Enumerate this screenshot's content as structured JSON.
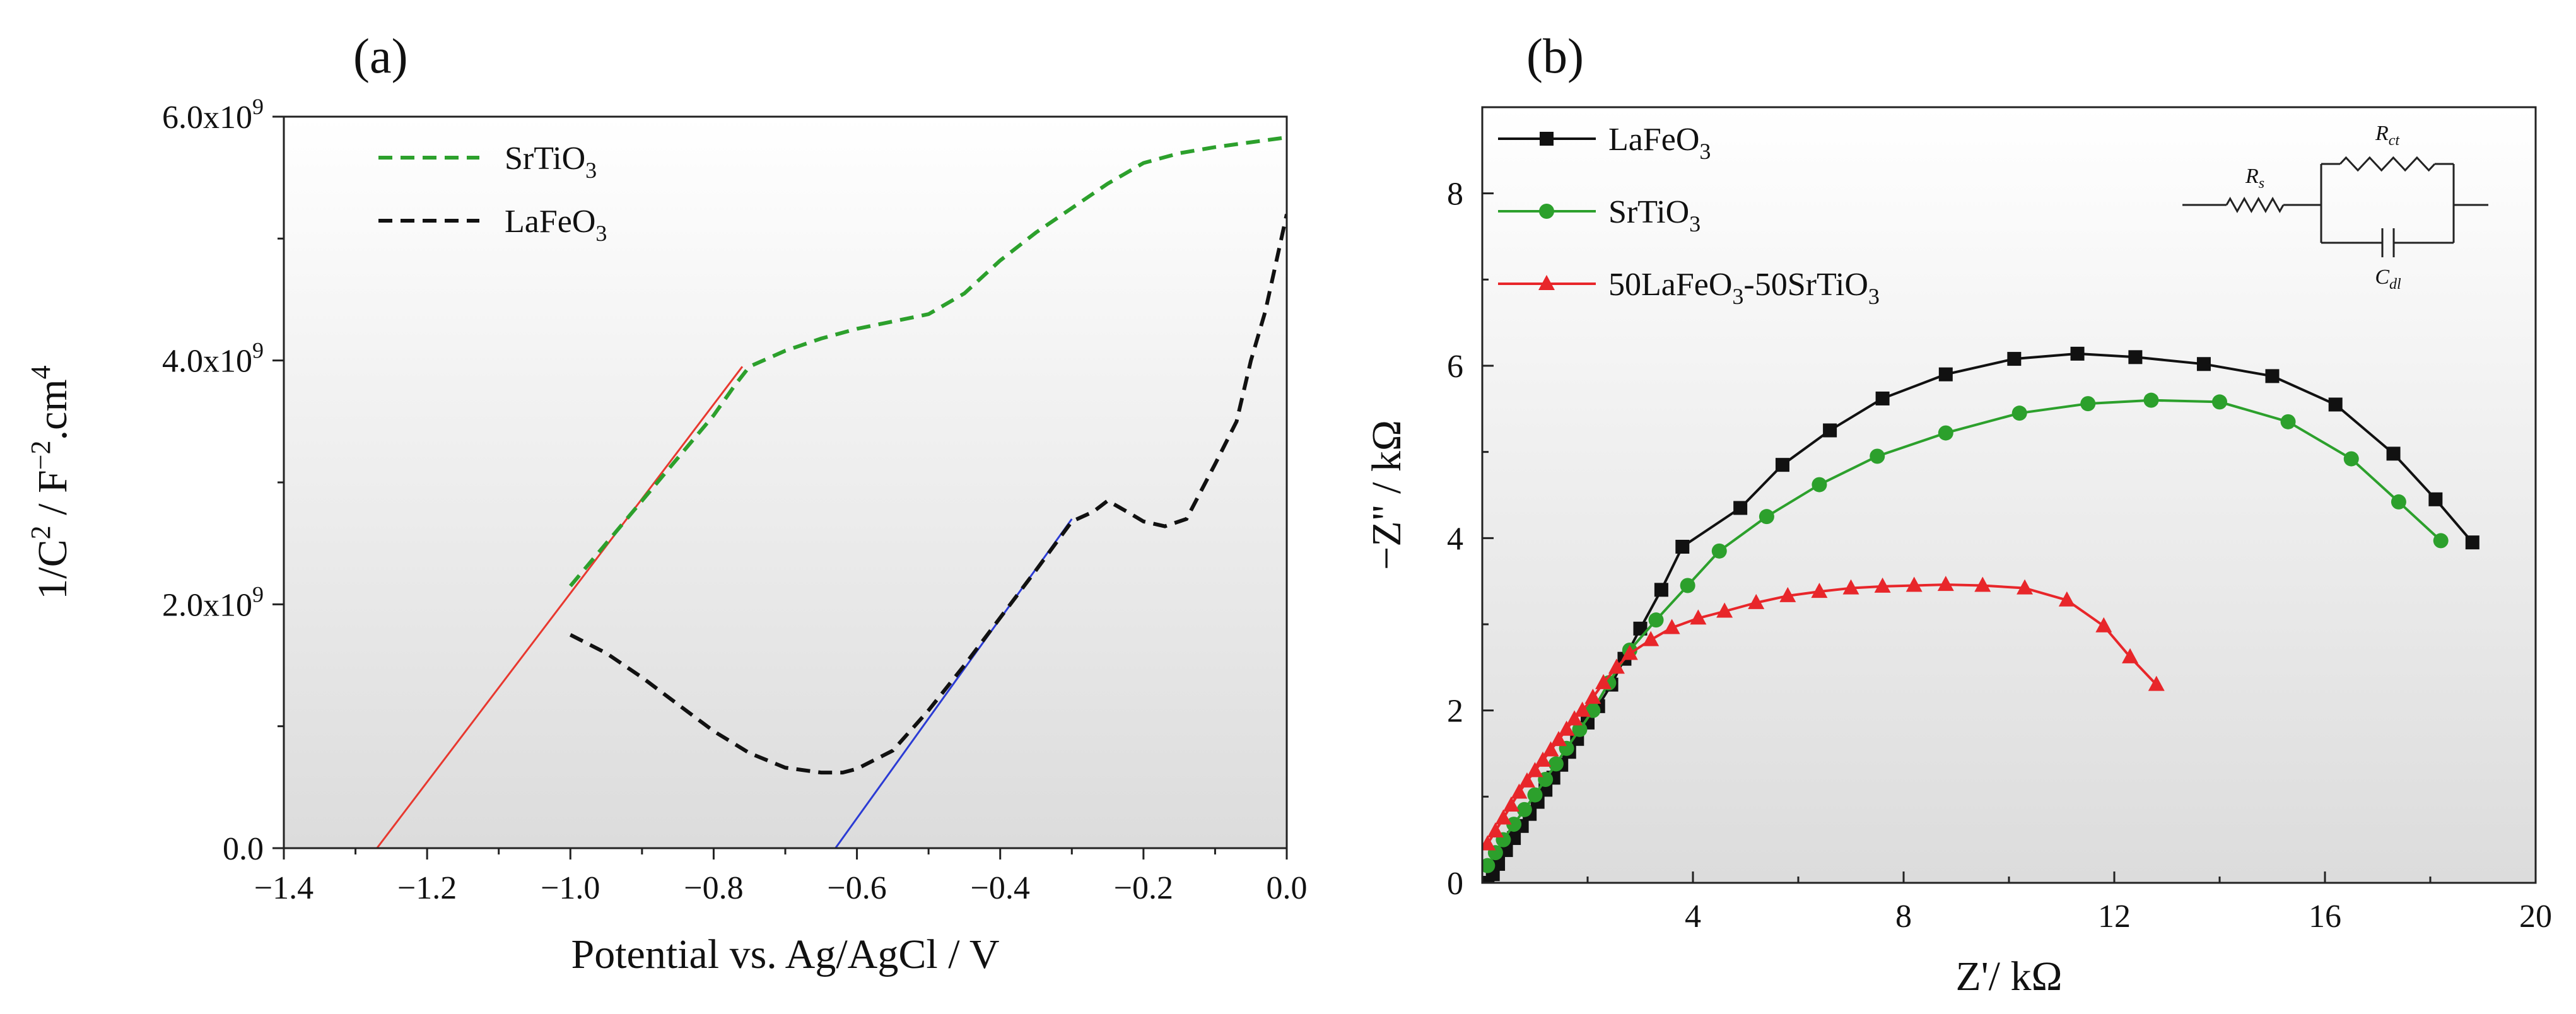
{
  "chart_data": [
    {
      "type": "line",
      "panel_label": "(a)",
      "xlabel": "Potential vs. Ag/AgCl / V",
      "ylabel": "1/C2 / F-2.cm4",
      "ylabel_parts": {
        "main1": "1/C",
        "sup1": "2",
        "main2": " / F",
        "sup2": "−2",
        "main3": ".cm",
        "sup3": "4"
      },
      "xlim": [
        -1.4,
        0.0
      ],
      "ylim": [
        0,
        6000000000
      ],
      "xticks": [
        -1.4,
        -1.2,
        -1.0,
        -0.8,
        -0.6,
        -0.4,
        -0.2,
        0.0
      ],
      "xtick_labels": [
        "−1.4",
        "−1.2",
        "−1.0",
        "−0.8",
        "−0.6",
        "−0.4",
        "−0.2",
        "0.0"
      ],
      "yticks": [
        0,
        2000000000,
        4000000000,
        6000000000
      ],
      "ytick_labels": [
        {
          "main": "0.0",
          "sup": ""
        },
        {
          "main": "2.0x10",
          "sup": "9"
        },
        {
          "main": "4.0x10",
          "sup": "9"
        },
        {
          "main": "6.0x10",
          "sup": "9"
        }
      ],
      "legend_position": "top-left",
      "series": [
        {
          "name": "SrTiO3",
          "label_main": "SrTiO",
          "label_sub": "3",
          "color": "#2ca02c",
          "style": "dashed",
          "x": [
            -1.0,
            -0.95,
            -0.9,
            -0.85,
            -0.8,
            -0.77,
            -0.75,
            -0.7,
            -0.65,
            -0.6,
            -0.55,
            -0.5,
            -0.45,
            -0.4,
            -0.35,
            -0.3,
            -0.25,
            -0.2,
            -0.15,
            -0.1,
            -0.05,
            0.0
          ],
          "y": [
            2150000000,
            2500000000,
            2850000000,
            3200000000,
            3550000000,
            3800000000,
            3950000000,
            4080000000,
            4180000000,
            4260000000,
            4320000000,
            4380000000,
            4550000000,
            4820000000,
            5050000000,
            5250000000,
            5450000000,
            5620000000,
            5700000000,
            5750000000,
            5790000000,
            5830000000
          ]
        },
        {
          "name": "LaFeO3",
          "label_main": "LaFeO",
          "label_sub": "3",
          "color": "#111111",
          "style": "dashed",
          "x": [
            -1.0,
            -0.95,
            -0.9,
            -0.85,
            -0.8,
            -0.75,
            -0.7,
            -0.65,
            -0.62,
            -0.6,
            -0.55,
            -0.5,
            -0.45,
            -0.4,
            -0.35,
            -0.3,
            -0.27,
            -0.25,
            -0.22,
            -0.2,
            -0.17,
            -0.14,
            -0.1,
            -0.07,
            -0.05,
            -0.03,
            0.0
          ],
          "y": [
            1750000000,
            1600000000,
            1400000000,
            1180000000,
            960000000,
            780000000,
            660000000,
            620000000,
            620000000,
            650000000,
            800000000,
            1130000000,
            1500000000,
            1890000000,
            2280000000,
            2680000000,
            2760000000,
            2850000000,
            2750000000,
            2680000000,
            2640000000,
            2700000000,
            3150000000,
            3500000000,
            4000000000,
            4400000000,
            5200000000
          ]
        }
      ],
      "fit_lines": [
        {
          "name": "SrTiO3 linear fit",
          "color": "#e8382f",
          "x": [
            -1.27,
            -0.76
          ],
          "y": [
            0,
            3950000000
          ]
        },
        {
          "name": "LaFeO3 linear fit",
          "color": "#2b3bd4",
          "x": [
            -0.63,
            -0.3
          ],
          "y": [
            0,
            2700000000
          ]
        }
      ]
    },
    {
      "type": "line",
      "panel_label": "(b)",
      "xlabel": "Z'/ kΩ",
      "ylabel": "−Z\" / kΩ",
      "xlim": [
        0,
        20
      ],
      "ylim": [
        0,
        9
      ],
      "xticks": [
        4,
        8,
        12,
        16,
        20
      ],
      "xtick_labels": [
        "4",
        "8",
        "12",
        "16",
        "20"
      ],
      "yticks": [
        0,
        2,
        4,
        6,
        8
      ],
      "ytick_labels": [
        "0",
        "2",
        "4",
        "6",
        "8"
      ],
      "legend_position": "top-left",
      "series": [
        {
          "name": "LaFeO3",
          "label_main": "LaFeO",
          "label_sub": "3",
          "label_tail": "",
          "color": "#111111",
          "marker": "square",
          "x": [
            0.1,
            0.2,
            0.3,
            0.45,
            0.6,
            0.75,
            0.9,
            1.05,
            1.2,
            1.35,
            1.5,
            1.65,
            1.8,
            2.0,
            2.2,
            2.45,
            2.7,
            3.0,
            3.4,
            3.8,
            4.9,
            5.7,
            6.6,
            7.6,
            8.8,
            10.1,
            11.3,
            12.4,
            13.7,
            15.0,
            16.2,
            17.3,
            18.1,
            18.8
          ],
          "y": [
            0.0,
            0.1,
            0.22,
            0.38,
            0.52,
            0.66,
            0.8,
            0.94,
            1.08,
            1.22,
            1.37,
            1.52,
            1.67,
            1.86,
            2.05,
            2.3,
            2.6,
            2.95,
            3.4,
            3.9,
            4.35,
            4.85,
            5.25,
            5.62,
            5.9,
            6.08,
            6.14,
            6.1,
            6.02,
            5.88,
            5.55,
            4.98,
            4.45,
            3.95
          ]
        },
        {
          "name": "SrTiO3",
          "label_main": "SrTiO",
          "label_sub": "3",
          "label_tail": "",
          "color": "#2ca02c",
          "marker": "circle",
          "x": [
            0.1,
            0.25,
            0.4,
            0.6,
            0.8,
            1.0,
            1.2,
            1.4,
            1.6,
            1.85,
            2.1,
            2.4,
            2.8,
            3.3,
            3.9,
            4.5,
            5.4,
            6.4,
            7.5,
            8.8,
            10.2,
            11.5,
            12.7,
            14.0,
            15.3,
            16.5,
            17.4,
            18.2
          ],
          "y": [
            0.2,
            0.35,
            0.5,
            0.68,
            0.85,
            1.02,
            1.2,
            1.38,
            1.56,
            1.78,
            2.0,
            2.32,
            2.7,
            3.05,
            3.45,
            3.85,
            4.25,
            4.62,
            4.95,
            5.22,
            5.45,
            5.56,
            5.6,
            5.58,
            5.35,
            4.92,
            4.42,
            3.97
          ]
        },
        {
          "name": "50LaFeO3-50SrTiO3",
          "label_main": "50LaFeO",
          "label_sub": "3",
          "label_tail": "-50SrTiO",
          "label_sub2": "3",
          "color": "#e8262a",
          "marker": "triangle",
          "x": [
            0.1,
            0.25,
            0.4,
            0.55,
            0.7,
            0.85,
            1.0,
            1.15,
            1.3,
            1.45,
            1.6,
            1.75,
            1.9,
            2.1,
            2.3,
            2.55,
            2.8,
            3.2,
            3.6,
            4.1,
            4.6,
            5.2,
            5.8,
            6.4,
            7.0,
            7.6,
            8.2,
            8.8,
            9.5,
            10.3,
            11.1,
            11.8,
            12.3,
            12.8
          ],
          "y": [
            0.45,
            0.6,
            0.75,
            0.9,
            1.05,
            1.18,
            1.3,
            1.42,
            1.54,
            1.66,
            1.78,
            1.9,
            2.0,
            2.15,
            2.32,
            2.5,
            2.66,
            2.82,
            2.96,
            3.07,
            3.15,
            3.25,
            3.33,
            3.38,
            3.42,
            3.44,
            3.45,
            3.46,
            3.45,
            3.42,
            3.28,
            2.98,
            2.62,
            2.3
          ]
        }
      ],
      "inset": {
        "description": "equivalent circuit",
        "rs": {
          "main": "R",
          "sub": "s"
        },
        "rct": {
          "main": "R",
          "sub": "ct"
        },
        "cdl": {
          "main": "C",
          "sub": "dl"
        }
      }
    }
  ]
}
